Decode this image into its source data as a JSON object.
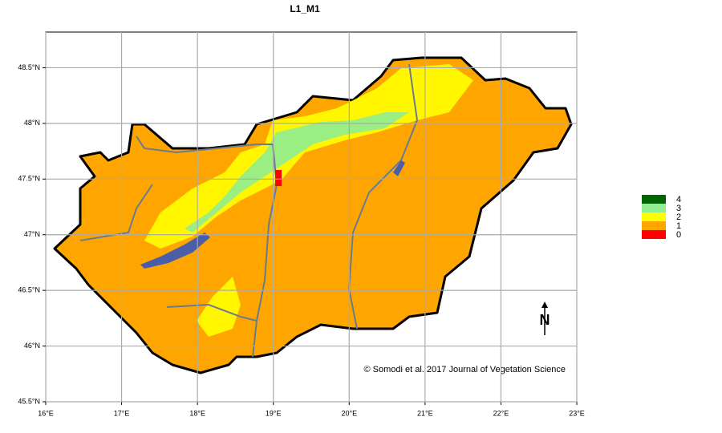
{
  "map": {
    "title": "L1_M1",
    "xlim": [
      16,
      23
    ],
    "ylim": [
      45.5,
      48.82
    ],
    "xticks": [
      {
        "value": 16,
        "label": "16°E"
      },
      {
        "value": 17,
        "label": "17°E"
      },
      {
        "value": 18,
        "label": "18°E"
      },
      {
        "value": 19,
        "label": "19°E"
      },
      {
        "value": 20,
        "label": "20°E"
      },
      {
        "value": 21,
        "label": "21°E"
      },
      {
        "value": 22,
        "label": "22°E"
      },
      {
        "value": 23,
        "label": "23°E"
      }
    ],
    "yticks": [
      {
        "value": 45.5,
        "label": "45.5°N"
      },
      {
        "value": 46,
        "label": "46°N"
      },
      {
        "value": 46.5,
        "label": "46.5°N"
      },
      {
        "value": 47,
        "label": "47°N"
      },
      {
        "value": 47.5,
        "label": "47.5°N"
      },
      {
        "value": 48,
        "label": "48°N"
      },
      {
        "value": 48.5,
        "label": "48.5°N"
      }
    ],
    "grid": true,
    "legend": [
      {
        "label": "4",
        "color": "#006400"
      },
      {
        "label": "3",
        "color": "#90ee90"
      },
      {
        "label": "2",
        "color": "#ffff00"
      },
      {
        "label": "1",
        "color": "#ffa500"
      },
      {
        "label": "0",
        "color": "#ff0000"
      }
    ],
    "credit": "© Somodi et al. 2017 Journal of Vegetation Science",
    "north": "N"
  }
}
